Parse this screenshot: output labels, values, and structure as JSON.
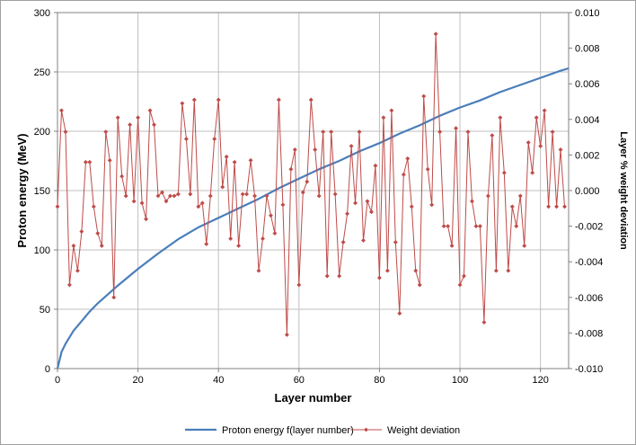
{
  "chart_data": {
    "type": "line",
    "xlabel": "Layer number",
    "ylabel": "Proton energy (MeV)",
    "y2label": "Layer % weight deviation",
    "xlim": [
      0,
      127
    ],
    "ylim": [
      0,
      300
    ],
    "y2lim": [
      -0.01,
      0.01
    ],
    "xticks": [
      0,
      20,
      40,
      60,
      80,
      100,
      120
    ],
    "xtick_labels": [
      "0",
      "20",
      "40",
      "60",
      "80",
      "100",
      "120"
    ],
    "yticks": [
      0,
      50,
      100,
      150,
      200,
      250,
      300
    ],
    "ytick_labels": [
      "0",
      "50",
      "100",
      "150",
      "200",
      "250",
      "300"
    ],
    "y2ticks": [
      -0.01,
      -0.008,
      -0.006,
      -0.004,
      -0.002,
      0,
      0.002,
      0.004,
      0.006,
      0.008,
      0.01
    ],
    "y2tick_labels": [
      "-0.010",
      "-0.008",
      "-0.006",
      "-0.004",
      "-0.002",
      "0.000",
      "0.002",
      "0.004",
      "0.006",
      "0.008",
      "0.010"
    ],
    "grid": true,
    "legend_position": "bottom",
    "colors": {
      "energy": "#4a7ebb",
      "deviation": "#be4b48",
      "grid": "#bfbfbf"
    },
    "series": [
      {
        "name": "Proton energy f(layer number)",
        "axis": "left",
        "marker": "none",
        "x": [
          0,
          1,
          2,
          4,
          6,
          8,
          10,
          15,
          20,
          25,
          30,
          35,
          40,
          45,
          50,
          55,
          60,
          65,
          70,
          75,
          80,
          85,
          90,
          95,
          100,
          105,
          110,
          115,
          120,
          125,
          127
        ],
        "values": [
          0,
          14,
          21,
          32,
          40,
          48,
          55,
          70,
          84,
          97,
          109,
          119,
          127,
          135,
          143,
          152,
          160,
          168,
          175,
          183,
          190,
          198,
          205,
          213,
          220,
          226,
          233,
          239,
          245,
          251,
          253
        ]
      },
      {
        "name": "Weight deviation",
        "axis": "right",
        "marker": "diamond",
        "x": [
          0,
          1,
          2,
          3,
          4,
          5,
          6,
          7,
          8,
          9,
          10,
          11,
          12,
          13,
          14,
          15,
          16,
          17,
          18,
          19,
          20,
          21,
          22,
          23,
          24,
          25,
          26,
          27,
          28,
          29,
          30,
          31,
          32,
          33,
          34,
          35,
          36,
          37,
          38,
          39,
          40,
          41,
          42,
          43,
          44,
          45,
          46,
          47,
          48,
          49,
          50,
          51,
          52,
          53,
          54,
          55,
          56,
          57,
          58,
          59,
          60,
          61,
          62,
          63,
          64,
          65,
          66,
          67,
          68,
          69,
          70,
          71,
          72,
          73,
          74,
          75,
          76,
          77,
          78,
          79,
          80,
          81,
          82,
          83,
          84,
          85,
          86,
          87,
          88,
          89,
          90,
          91,
          92,
          93,
          94,
          95,
          96,
          97,
          98,
          99,
          100,
          101,
          102,
          103,
          104,
          105,
          106,
          107,
          108,
          109,
          110,
          111,
          112,
          113,
          114,
          115,
          116,
          117,
          118,
          119,
          120,
          121,
          122,
          123,
          124,
          125,
          126
        ],
        "values": [
          -0.0009,
          0.0045,
          0.0033,
          -0.0053,
          -0.0031,
          -0.0045,
          -0.0023,
          0.0016,
          0.0016,
          -0.0009,
          -0.0024,
          -0.0031,
          0.0033,
          0.0017,
          -0.006,
          0.0041,
          0.0008,
          -0.0003,
          0.0037,
          -0.0006,
          0.0041,
          -0.0007,
          -0.0016,
          0.0045,
          0.0037,
          -0.0003,
          -0.0001,
          -0.0006,
          -0.0003,
          -0.0003,
          -0.0002,
          0.0049,
          0.0029,
          -0.0002,
          0.0051,
          -0.0009,
          -0.0007,
          -0.003,
          -0.0003,
          0.0029,
          0.0051,
          0.0002,
          0.0019,
          -0.0027,
          0.0016,
          -0.0031,
          -0.0002,
          -0.0002,
          0.0017,
          -0.0003,
          -0.0045,
          -0.0027,
          -0.0003,
          -0.0014,
          -0.0024,
          0.0051,
          -0.0008,
          -0.0081,
          0.0012,
          0.0023,
          -0.0053,
          -0.0001,
          0.0005,
          0.0051,
          0.0023,
          -0.0003,
          0.0033,
          -0.0048,
          0.0033,
          -0.0002,
          -0.0048,
          -0.0029,
          -0.0013,
          0.0025,
          -0.0007,
          0.0033,
          -0.0028,
          -0.0006,
          -0.0012,
          0.0014,
          -0.0049,
          0.0041,
          -0.0045,
          0.0045,
          -0.0029,
          -0.0069,
          0.0009,
          0.0018,
          -0.0009,
          -0.0045,
          -0.0053,
          0.0053,
          0.0012,
          -0.0008,
          0.0088,
          0.0033,
          -0.002,
          -0.002,
          -0.0031,
          0.0035,
          -0.0053,
          -0.0048,
          0.0033,
          -0.0006,
          -0.002,
          -0.002,
          -0.0074,
          -0.0003,
          0.0031,
          -0.0045,
          0.0041,
          0.001,
          -0.0045,
          -0.0009,
          -0.002,
          -0.0003,
          -0.0031,
          0.0027,
          0.001,
          0.0041,
          0.0025,
          0.0045,
          -0.0009,
          0.0033,
          -0.0009,
          0.0023,
          -0.0009
        ]
      }
    ]
  }
}
